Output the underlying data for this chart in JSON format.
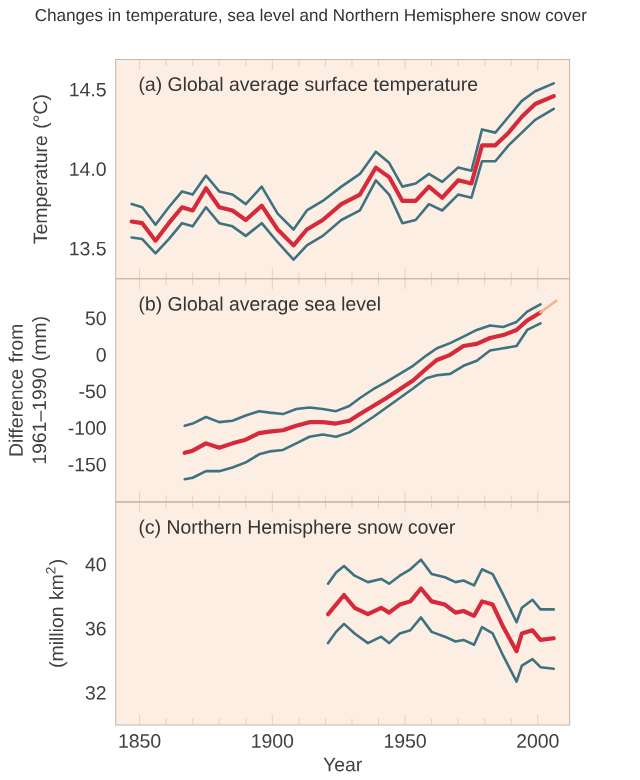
{
  "chart_data": [
    {
      "type": "line",
      "title": "Changes in temperature, sea level and Northern Hemisphere snow cover",
      "subtitle": "(a) Global average surface temperature",
      "ylabel": "Temperature (°C)",
      "xlim": [
        1841,
        2012
      ],
      "xticks": [
        1850,
        1900,
        1950,
        2000
      ],
      "ylim": [
        13.31,
        14.69
      ],
      "yticks": [
        13.5,
        {
          "value": 14.0,
          "label": "14.0"
        },
        14.5
      ],
      "tick_labels": "y",
      "marker": "none",
      "grid": false,
      "x": [
        1847,
        1851,
        1856,
        1861,
        1866,
        1870,
        1875,
        1880,
        1885,
        1890,
        1896,
        1902,
        1908,
        1913,
        1919,
        1926,
        1933,
        1939,
        1944,
        1949,
        1954,
        1959,
        1964,
        1970,
        1975,
        1979,
        1984,
        1989,
        1994,
        1999,
        2006
      ],
      "series": [
        {
          "color": "#3f7280",
          "values": [
            13.78,
            13.76,
            13.65,
            13.76,
            13.86,
            13.84,
            13.96,
            13.86,
            13.84,
            13.78,
            13.89,
            13.72,
            13.62,
            13.74,
            13.8,
            13.89,
            13.97,
            14.11,
            14.04,
            13.89,
            13.91,
            13.97,
            13.92,
            14.01,
            13.99,
            14.25,
            14.23,
            14.33,
            14.43,
            14.49,
            14.54
          ]
        },
        {
          "color": "#3f7280",
          "values": [
            13.57,
            13.56,
            13.47,
            13.56,
            13.66,
            13.64,
            13.76,
            13.66,
            13.64,
            13.58,
            13.66,
            13.54,
            13.43,
            13.52,
            13.58,
            13.68,
            13.74,
            13.93,
            13.84,
            13.66,
            13.68,
            13.78,
            13.74,
            13.84,
            13.82,
            14.05,
            14.05,
            14.15,
            14.23,
            14.31,
            14.38
          ]
        },
        {
          "color": "#d62a3c",
          "values": [
            13.67,
            13.66,
            13.55,
            13.66,
            13.76,
            13.74,
            13.88,
            13.76,
            13.74,
            13.68,
            13.77,
            13.62,
            13.52,
            13.62,
            13.68,
            13.78,
            13.84,
            14.01,
            13.95,
            13.8,
            13.8,
            13.89,
            13.82,
            13.93,
            13.91,
            14.15,
            14.15,
            14.23,
            14.33,
            14.41,
            14.46
          ]
        }
      ]
    },
    {
      "type": "line",
      "title": "(b) Global average sea level",
      "ylabel": "Difference from 1961–1990 (mm)",
      "xlim": [
        1841,
        2012
      ],
      "xticks": [
        1850,
        1900,
        1950,
        2000
      ],
      "ylim": [
        -201,
        104
      ],
      "yticks": [
        -150,
        -100,
        -50,
        0,
        50
      ],
      "tick_labels": "y",
      "marker": "none",
      "grid": false,
      "x": [
        1867,
        1870,
        1875,
        1880,
        1885,
        1890,
        1895,
        1899,
        1904,
        1909,
        1914,
        1919,
        1924,
        1929,
        1933,
        1938,
        1943,
        1948,
        1953,
        1958,
        1962,
        1967,
        1972,
        1977,
        1982,
        1987,
        1992,
        1996,
        2001
      ],
      "series": [
        {
          "color": "#3f7280",
          "values": [
            -97,
            -94,
            -85,
            -92,
            -90,
            -83,
            -77,
            -79,
            -81,
            -74,
            -72,
            -74,
            -77,
            -70,
            -59,
            -47,
            -37,
            -26,
            -15,
            -1,
            9,
            16,
            25,
            34,
            40,
            38,
            45,
            59,
            69
          ]
        },
        {
          "color": "#3f7280",
          "values": [
            -170,
            -168,
            -159,
            -159,
            -154,
            -147,
            -136,
            -132,
            -130,
            -121,
            -112,
            -109,
            -112,
            -106,
            -97,
            -85,
            -72,
            -59,
            -46,
            -32,
            -28,
            -26,
            -15,
            -8,
            6,
            9,
            12,
            34,
            43
          ]
        },
        {
          "color": "#d62a3c",
          "values": [
            -134,
            -131,
            -121,
            -127,
            -121,
            -116,
            -107,
            -105,
            -103,
            -97,
            -92,
            -92,
            -94,
            -90,
            -81,
            -70,
            -59,
            -47,
            -35,
            -19,
            -7,
            0,
            12,
            15,
            23,
            27,
            34,
            47,
            58
          ]
        },
        {
          "color": "#f5b48a",
          "x": [
            2001,
            2007
          ],
          "values": [
            58,
            74
          ]
        }
      ]
    },
    {
      "type": "line",
      "title": "(c) Northern Hemisphere snow cover",
      "xlabel": "Year",
      "ylabel": "(million km$^{2}$)",
      "xlim": [
        1841,
        2012
      ],
      "xticks": [
        1850,
        1900,
        1950,
        2000
      ],
      "ylim": [
        30.0,
        43.9
      ],
      "yticks": [
        32,
        36,
        40
      ],
      "marker": "none",
      "grid": false,
      "x": [
        1921,
        1924,
        1927,
        1931,
        1936,
        1941,
        1944,
        1948,
        1952,
        1956,
        1960,
        1965,
        1969,
        1972,
        1976,
        1979,
        1983,
        1987,
        1992,
        1994,
        1998,
        2001,
        2006
      ],
      "series": [
        {
          "color": "#3f7280",
          "values": [
            38.8,
            39.5,
            39.9,
            39.3,
            38.9,
            39.1,
            38.8,
            39.3,
            39.7,
            40.3,
            39.4,
            39.2,
            38.9,
            39.0,
            38.7,
            39.7,
            39.4,
            38.1,
            36.4,
            37.3,
            37.8,
            37.2,
            37.2
          ]
        },
        {
          "color": "#3f7280",
          "values": [
            35.1,
            35.8,
            36.3,
            35.7,
            35.1,
            35.5,
            35.1,
            35.7,
            35.9,
            36.7,
            35.8,
            35.5,
            35.2,
            35.3,
            35.0,
            36.1,
            35.7,
            34.3,
            32.7,
            33.7,
            34.1,
            33.6,
            33.5
          ]
        },
        {
          "color": "#d62a3c",
          "values": [
            36.9,
            37.5,
            38.1,
            37.3,
            36.9,
            37.3,
            37.0,
            37.5,
            37.7,
            38.5,
            37.7,
            37.5,
            37.0,
            37.1,
            36.8,
            37.7,
            37.5,
            36.1,
            34.6,
            35.7,
            35.9,
            35.3,
            35.4
          ]
        }
      ]
    }
  ]
}
